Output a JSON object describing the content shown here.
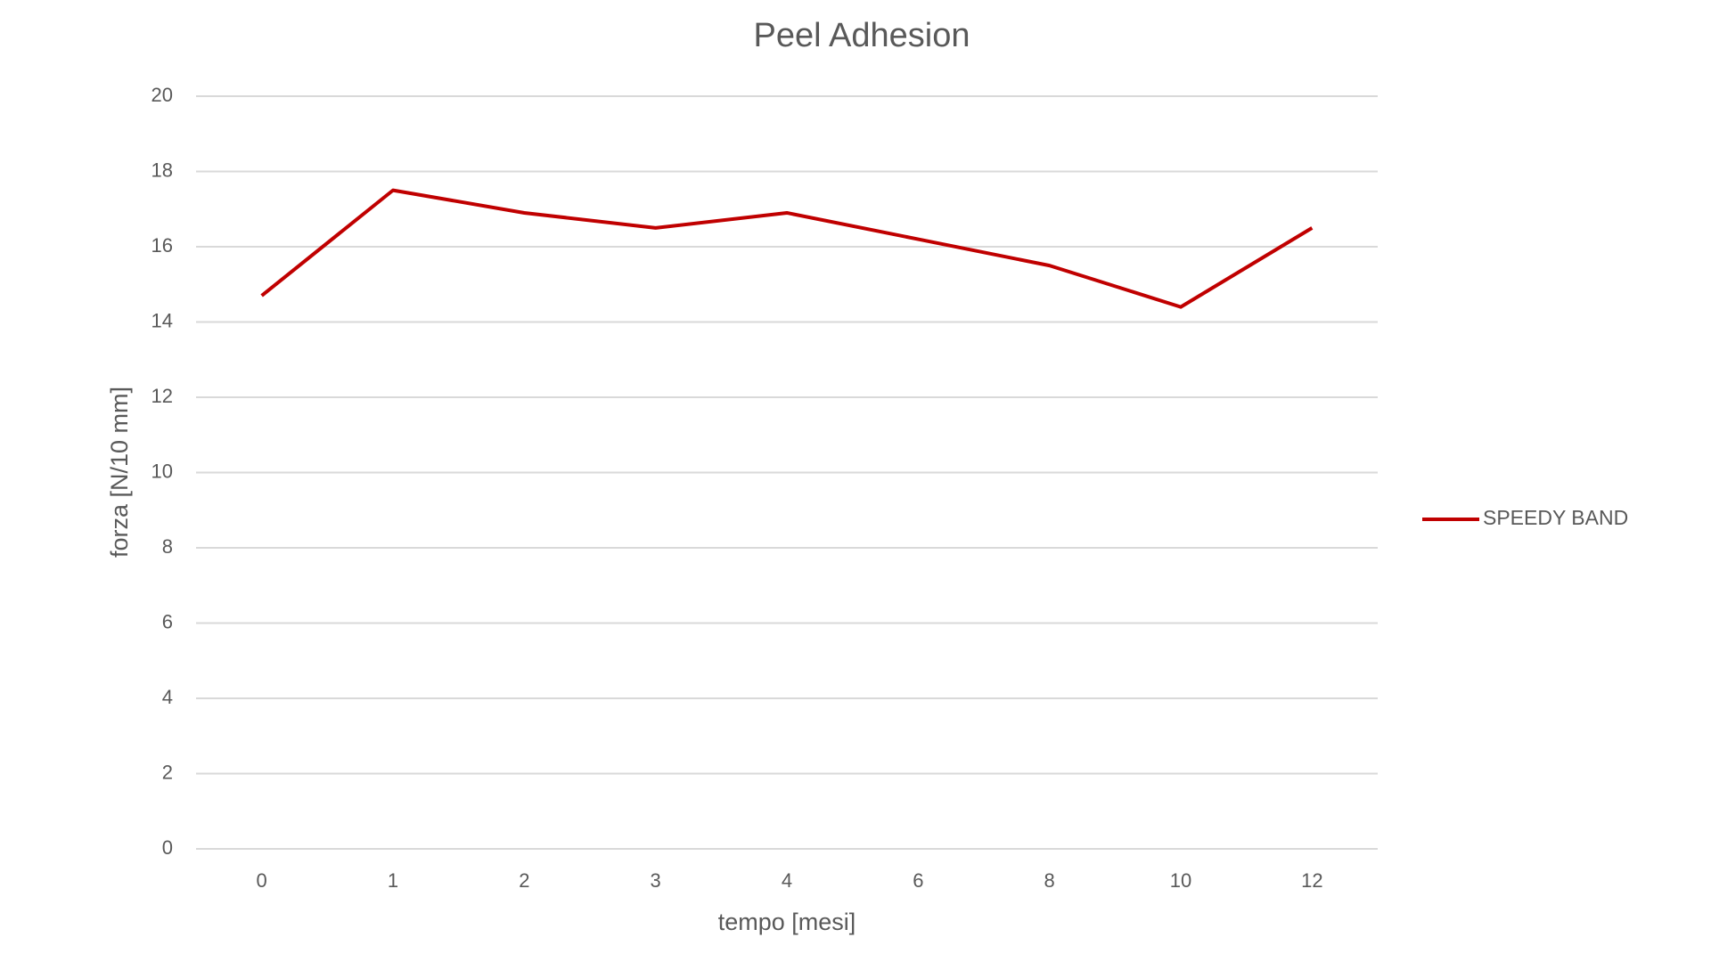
{
  "chart_data": {
    "type": "line",
    "title": "Peel Adhesion",
    "x_label": "tempo [mesi]",
    "y_label": "forza [N/10 mm]",
    "categories": [
      "0",
      "1",
      "2",
      "3",
      "4",
      "6",
      "8",
      "10",
      "12"
    ],
    "series": [
      {
        "name": "SPEEDY BAND",
        "color": "#c00000",
        "values": [
          14.7,
          17.5,
          16.9,
          16.5,
          16.9,
          16.2,
          15.5,
          14.4,
          16.5
        ]
      }
    ],
    "ylim": [
      0,
      20
    ],
    "yticks": [
      0,
      2,
      4,
      6,
      8,
      10,
      12,
      14,
      16,
      18,
      20
    ],
    "grid": true,
    "legend": "right"
  }
}
